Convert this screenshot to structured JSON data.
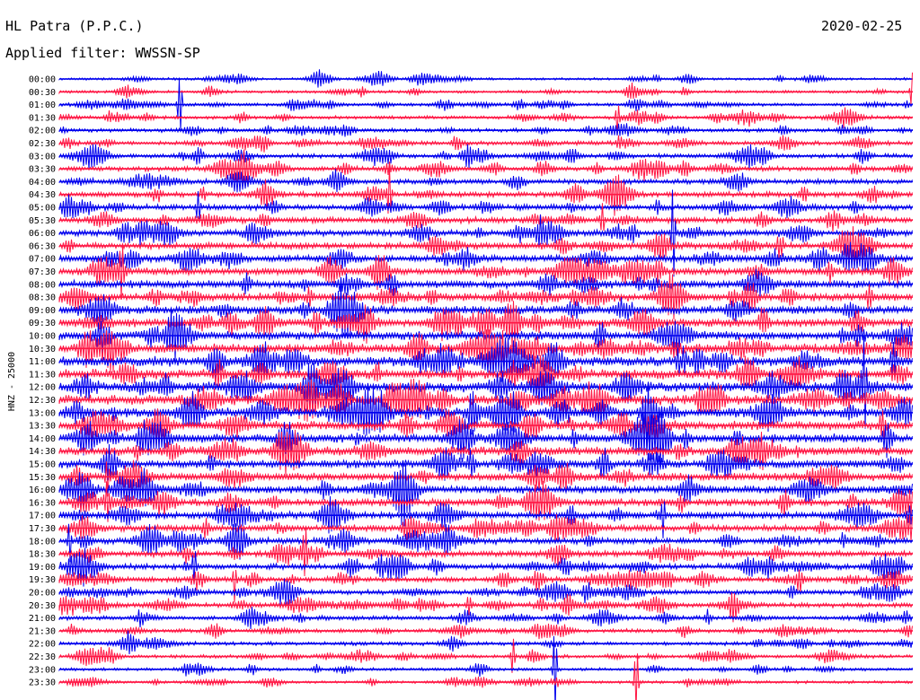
{
  "header": {
    "station": "HL Patra (P.P.C.)",
    "filter": "Applied filter: WWSSN-SP",
    "date": "2020-02-25"
  },
  "chart_data": {
    "type": "line",
    "channel_label": "HNZ - 25000",
    "row_labels": [
      "00:00",
      "00:30",
      "01:00",
      "01:30",
      "02:00",
      "02:30",
      "03:00",
      "03:30",
      "04:00",
      "04:30",
      "05:00",
      "05:30",
      "06:00",
      "06:30",
      "07:00",
      "07:30",
      "08:00",
      "08:30",
      "09:00",
      "09:30",
      "10:00",
      "10:30",
      "11:00",
      "11:30",
      "12:00",
      "12:30",
      "13:00",
      "13:30",
      "14:00",
      "14:30",
      "15:00",
      "15:30",
      "16:00",
      "16:30",
      "17:00",
      "17:30",
      "18:00",
      "18:30",
      "19:00",
      "19:30",
      "20:00",
      "20:30",
      "21:00",
      "21:30",
      "22:00",
      "22:30",
      "23:00",
      "23:30"
    ],
    "colors": [
      "#0000ee",
      "#ff1744"
    ]
  }
}
